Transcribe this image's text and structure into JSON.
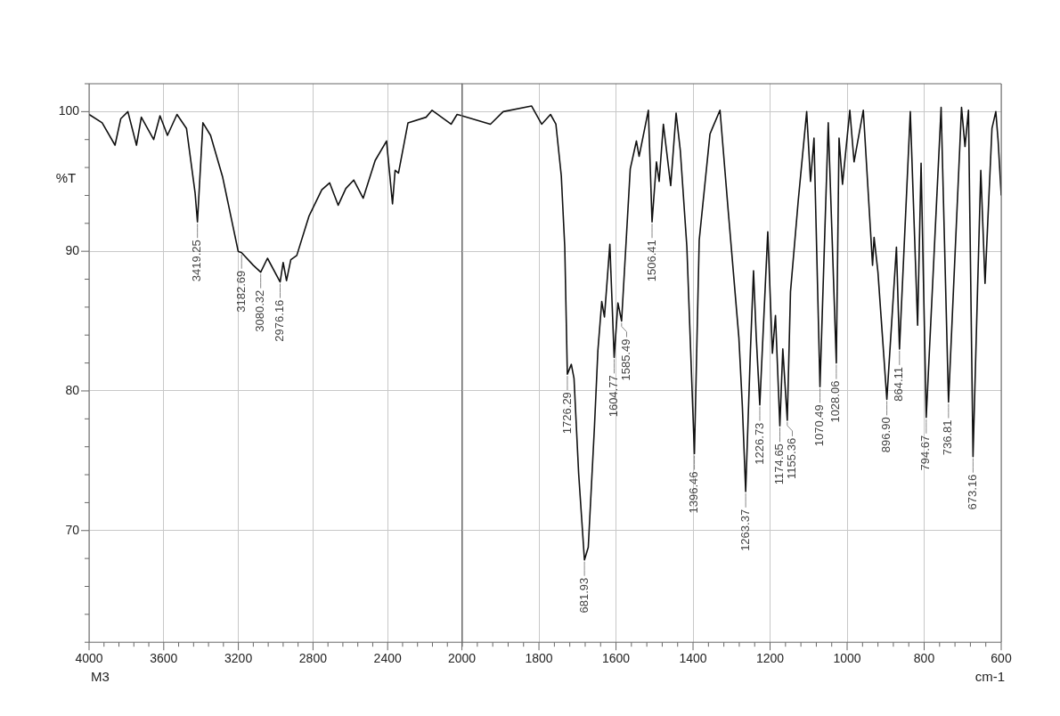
{
  "chart_data": [
    {
      "type": "line",
      "ylabel": "%T",
      "grid": true,
      "xlim": [
        4000,
        2000
      ],
      "ylim": [
        62,
        102
      ],
      "xticks": [
        4000,
        {
          "value": 3920,
          "label": null
        },
        {
          "value": 3840,
          "label": null
        },
        {
          "value": 3760,
          "label": null
        },
        {
          "value": 3680,
          "label": null
        },
        3600,
        {
          "value": 3520,
          "label": null
        },
        {
          "value": 3440,
          "label": null
        },
        {
          "value": 3360,
          "label": null
        },
        {
          "value": 3280,
          "label": null
        },
        3200,
        {
          "value": 3120,
          "label": null
        },
        {
          "value": 3040,
          "label": null
        },
        {
          "value": 2960,
          "label": null
        },
        {
          "value": 2880,
          "label": null
        },
        2800,
        {
          "value": 2720,
          "label": null
        },
        {
          "value": 2640,
          "label": null
        },
        {
          "value": 2560,
          "label": null
        },
        {
          "value": 2480,
          "label": null
        },
        2400,
        {
          "value": 2320,
          "label": null
        },
        {
          "value": 2240,
          "label": null
        },
        {
          "value": 2160,
          "label": null
        },
        {
          "value": 2080,
          "label": null
        },
        {
          "value": 2000,
          "label": null
        }
      ],
      "yticks": [
        {
          "value": 62,
          "label": null
        },
        {
          "value": 64,
          "label": null
        },
        {
          "value": 66,
          "label": null
        },
        {
          "value": 68,
          "label": null
        },
        70,
        {
          "value": 72,
          "label": null
        },
        {
          "value": 74,
          "label": null
        },
        {
          "value": 76,
          "label": null
        },
        {
          "value": 78,
          "label": null
        },
        80,
        {
          "value": 82,
          "label": null
        },
        {
          "value": 84,
          "label": null
        },
        {
          "value": 86,
          "label": null
        },
        {
          "value": 88,
          "label": null
        },
        90,
        {
          "value": 92,
          "label": null
        },
        {
          "value": 94,
          "label": null
        },
        {
          "value": 96,
          "label": null
        },
        {
          "value": 98,
          "label": null
        },
        100,
        {
          "value": 102,
          "label": null
        }
      ],
      "x": [
        4000,
        3930,
        3861,
        3830,
        3792,
        3746,
        3720,
        3654,
        3620,
        3580,
        3529,
        3478,
        3432,
        3419.25,
        3390,
        3349,
        3284,
        3201,
        3182.69,
        3120,
        3080.32,
        3044,
        2976.16,
        2960,
        2942,
        2919,
        2887,
        2822,
        2753,
        2711,
        2665,
        2624,
        2582,
        2531,
        2467,
        2406,
        2374,
        2360,
        2342,
        2291,
        2194,
        2162,
        2060,
        2028,
        2000
      ],
      "series": [
        {
          "color": "#111111",
          "values": [
            99.8,
            99.2,
            97.6,
            99.5,
            100,
            97.6,
            99.6,
            98,
            99.7,
            98.3,
            99.8,
            98.8,
            94.2,
            92.1,
            99.2,
            98.3,
            95.3,
            90,
            89.9,
            89,
            88.5,
            89.5,
            87.8,
            89.2,
            87.9,
            89.4,
            89.7,
            92.5,
            94.4,
            94.9,
            93.3,
            94.5,
            95.1,
            93.8,
            96.5,
            97.9,
            93.4,
            95.8,
            95.6,
            99.2,
            99.6,
            100.1,
            99.1,
            99.8,
            99.7
          ]
        }
      ],
      "annotations": [
        "M3",
        {
          "text": "3419.25",
          "x": 3419.25,
          "y": 92.1
        },
        {
          "text": "3182.69",
          "x": 3182.69,
          "y": 89.9
        },
        {
          "text": "3080.32",
          "x": 3080.32,
          "y": 88.5
        },
        {
          "text": "2976.16",
          "x": 2976.16,
          "y": 87.8
        }
      ]
    },
    {
      "type": "line",
      "xlabel": "cm-1",
      "grid": true,
      "tick_labels": "x",
      "xlim": [
        2000,
        600
      ],
      "ylim": [
        62,
        102
      ],
      "yticks": [
        70,
        80,
        90,
        100
      ],
      "xticks": [
        2000,
        {
          "value": 1960,
          "label": null
        },
        {
          "value": 1920,
          "label": null
        },
        {
          "value": 1880,
          "label": null
        },
        {
          "value": 1840,
          "label": null
        },
        1800,
        {
          "value": 1760,
          "label": null
        },
        {
          "value": 1720,
          "label": null
        },
        {
          "value": 1680,
          "label": null
        },
        {
          "value": 1640,
          "label": null
        },
        1600,
        {
          "value": 1560,
          "label": null
        },
        {
          "value": 1520,
          "label": null
        },
        {
          "value": 1480,
          "label": null
        },
        {
          "value": 1440,
          "label": null
        },
        1400,
        {
          "value": 1360,
          "label": null
        },
        {
          "value": 1320,
          "label": null
        },
        {
          "value": 1280,
          "label": null
        },
        {
          "value": 1240,
          "label": null
        },
        1200,
        {
          "value": 1160,
          "label": null
        },
        {
          "value": 1120,
          "label": null
        },
        {
          "value": 1080,
          "label": null
        },
        {
          "value": 1040,
          "label": null
        },
        1000,
        {
          "value": 960,
          "label": null
        },
        {
          "value": 920,
          "label": null
        },
        {
          "value": 880,
          "label": null
        },
        {
          "value": 840,
          "label": null
        },
        800,
        {
          "value": 760,
          "label": null
        },
        {
          "value": 720,
          "label": null
        },
        {
          "value": 680,
          "label": null
        },
        {
          "value": 640,
          "label": null
        },
        600
      ],
      "x": [
        2000,
        1926,
        1893,
        1819,
        1793,
        1770,
        1756,
        1742,
        1733,
        1726.29,
        1716,
        1709,
        1697,
        1681.93,
        1672,
        1656,
        1647,
        1637,
        1630,
        1616,
        1604.77,
        1595,
        1585.49,
        1563,
        1547,
        1540,
        1516,
        1506.41,
        1495,
        1488,
        1477,
        1458,
        1444,
        1433,
        1416,
        1396.46,
        1384,
        1356,
        1350,
        1330,
        1309,
        1281,
        1272,
        1263.37,
        1251,
        1243,
        1236,
        1226.73,
        1206,
        1194,
        1186,
        1174.65,
        1167,
        1155.36,
        1147,
        1127,
        1105,
        1095,
        1086,
        1070.49,
        1049,
        1028.06,
        1021,
        1012,
        993,
        982,
        958,
        934,
        930,
        920,
        896.9,
        872,
        864.11,
        836,
        817,
        808,
        794.67,
        756,
        736.81,
        703,
        694,
        685,
        673.16,
        653,
        642,
        624,
        614,
        608,
        600
      ],
      "series": [
        {
          "color": "#111111",
          "values": [
            99.7,
            99.1,
            100,
            100.4,
            99.1,
            99.8,
            99.1,
            95.4,
            90.3,
            81.2,
            81.9,
            80.9,
            74.1,
            67.9,
            68.8,
            77.4,
            82.9,
            86.4,
            85.3,
            90.5,
            82.4,
            86.3,
            85,
            95.9,
            97.9,
            96.8,
            100.1,
            92.1,
            96.4,
            95,
            99.1,
            94.7,
            99.9,
            97.2,
            90.3,
            75.5,
            90.8,
            98.4,
            98.8,
            100.1,
            93,
            83.8,
            78.9,
            72.8,
            82.9,
            88.6,
            83.9,
            79,
            91.4,
            82.7,
            85.4,
            77.5,
            83,
            77.9,
            87.1,
            93.6,
            100,
            95,
            98.1,
            80.3,
            99.2,
            82,
            98.1,
            94.8,
            100.1,
            96.4,
            100.1,
            89,
            91,
            88.5,
            79.4,
            90.3,
            83,
            100,
            84.7,
            96.3,
            78.1,
            100.3,
            79.2,
            100.3,
            97.5,
            100.1,
            75.3,
            95.8,
            87.7,
            98.8,
            100,
            97.9,
            94
          ]
        }
      ],
      "annotations": [
        {
          "text": "1726.29",
          "x": 1726.29,
          "y": 81.2
        },
        {
          "text": "681.93",
          "x": 1681.93,
          "y": 67.9
        },
        {
          "text": "1604.77",
          "x": 1604.77,
          "y": 82.4
        },
        {
          "text": "1585.49",
          "x": 1585.49,
          "y": 85
        },
        {
          "text": "1506.41",
          "x": 1506.41,
          "y": 92.1
        },
        {
          "text": "1396.46",
          "x": 1396.46,
          "y": 75.5
        },
        {
          "text": "1263.37",
          "x": 1263.37,
          "y": 72.8
        },
        {
          "text": "1226.73",
          "x": 1226.73,
          "y": 79
        },
        {
          "text": "1174.65",
          "x": 1174.65,
          "y": 77.5
        },
        {
          "text": "1155.36",
          "x": 1155.36,
          "y": 77.9
        },
        {
          "text": "1070.49",
          "x": 1070.49,
          "y": 80.3
        },
        {
          "text": "1028.06",
          "x": 1028.06,
          "y": 82
        },
        {
          "text": "896.90",
          "x": 896.9,
          "y": 79.4
        },
        {
          "text": "864.11",
          "x": 864.11,
          "y": 83
        },
        {
          "text": "794.67",
          "x": 794.67,
          "y": 78.1
        },
        {
          "text": "736.81",
          "x": 736.81,
          "y": 79.2
        },
        {
          "text": "673.16",
          "x": 673.16,
          "y": 75.3
        }
      ]
    }
  ]
}
